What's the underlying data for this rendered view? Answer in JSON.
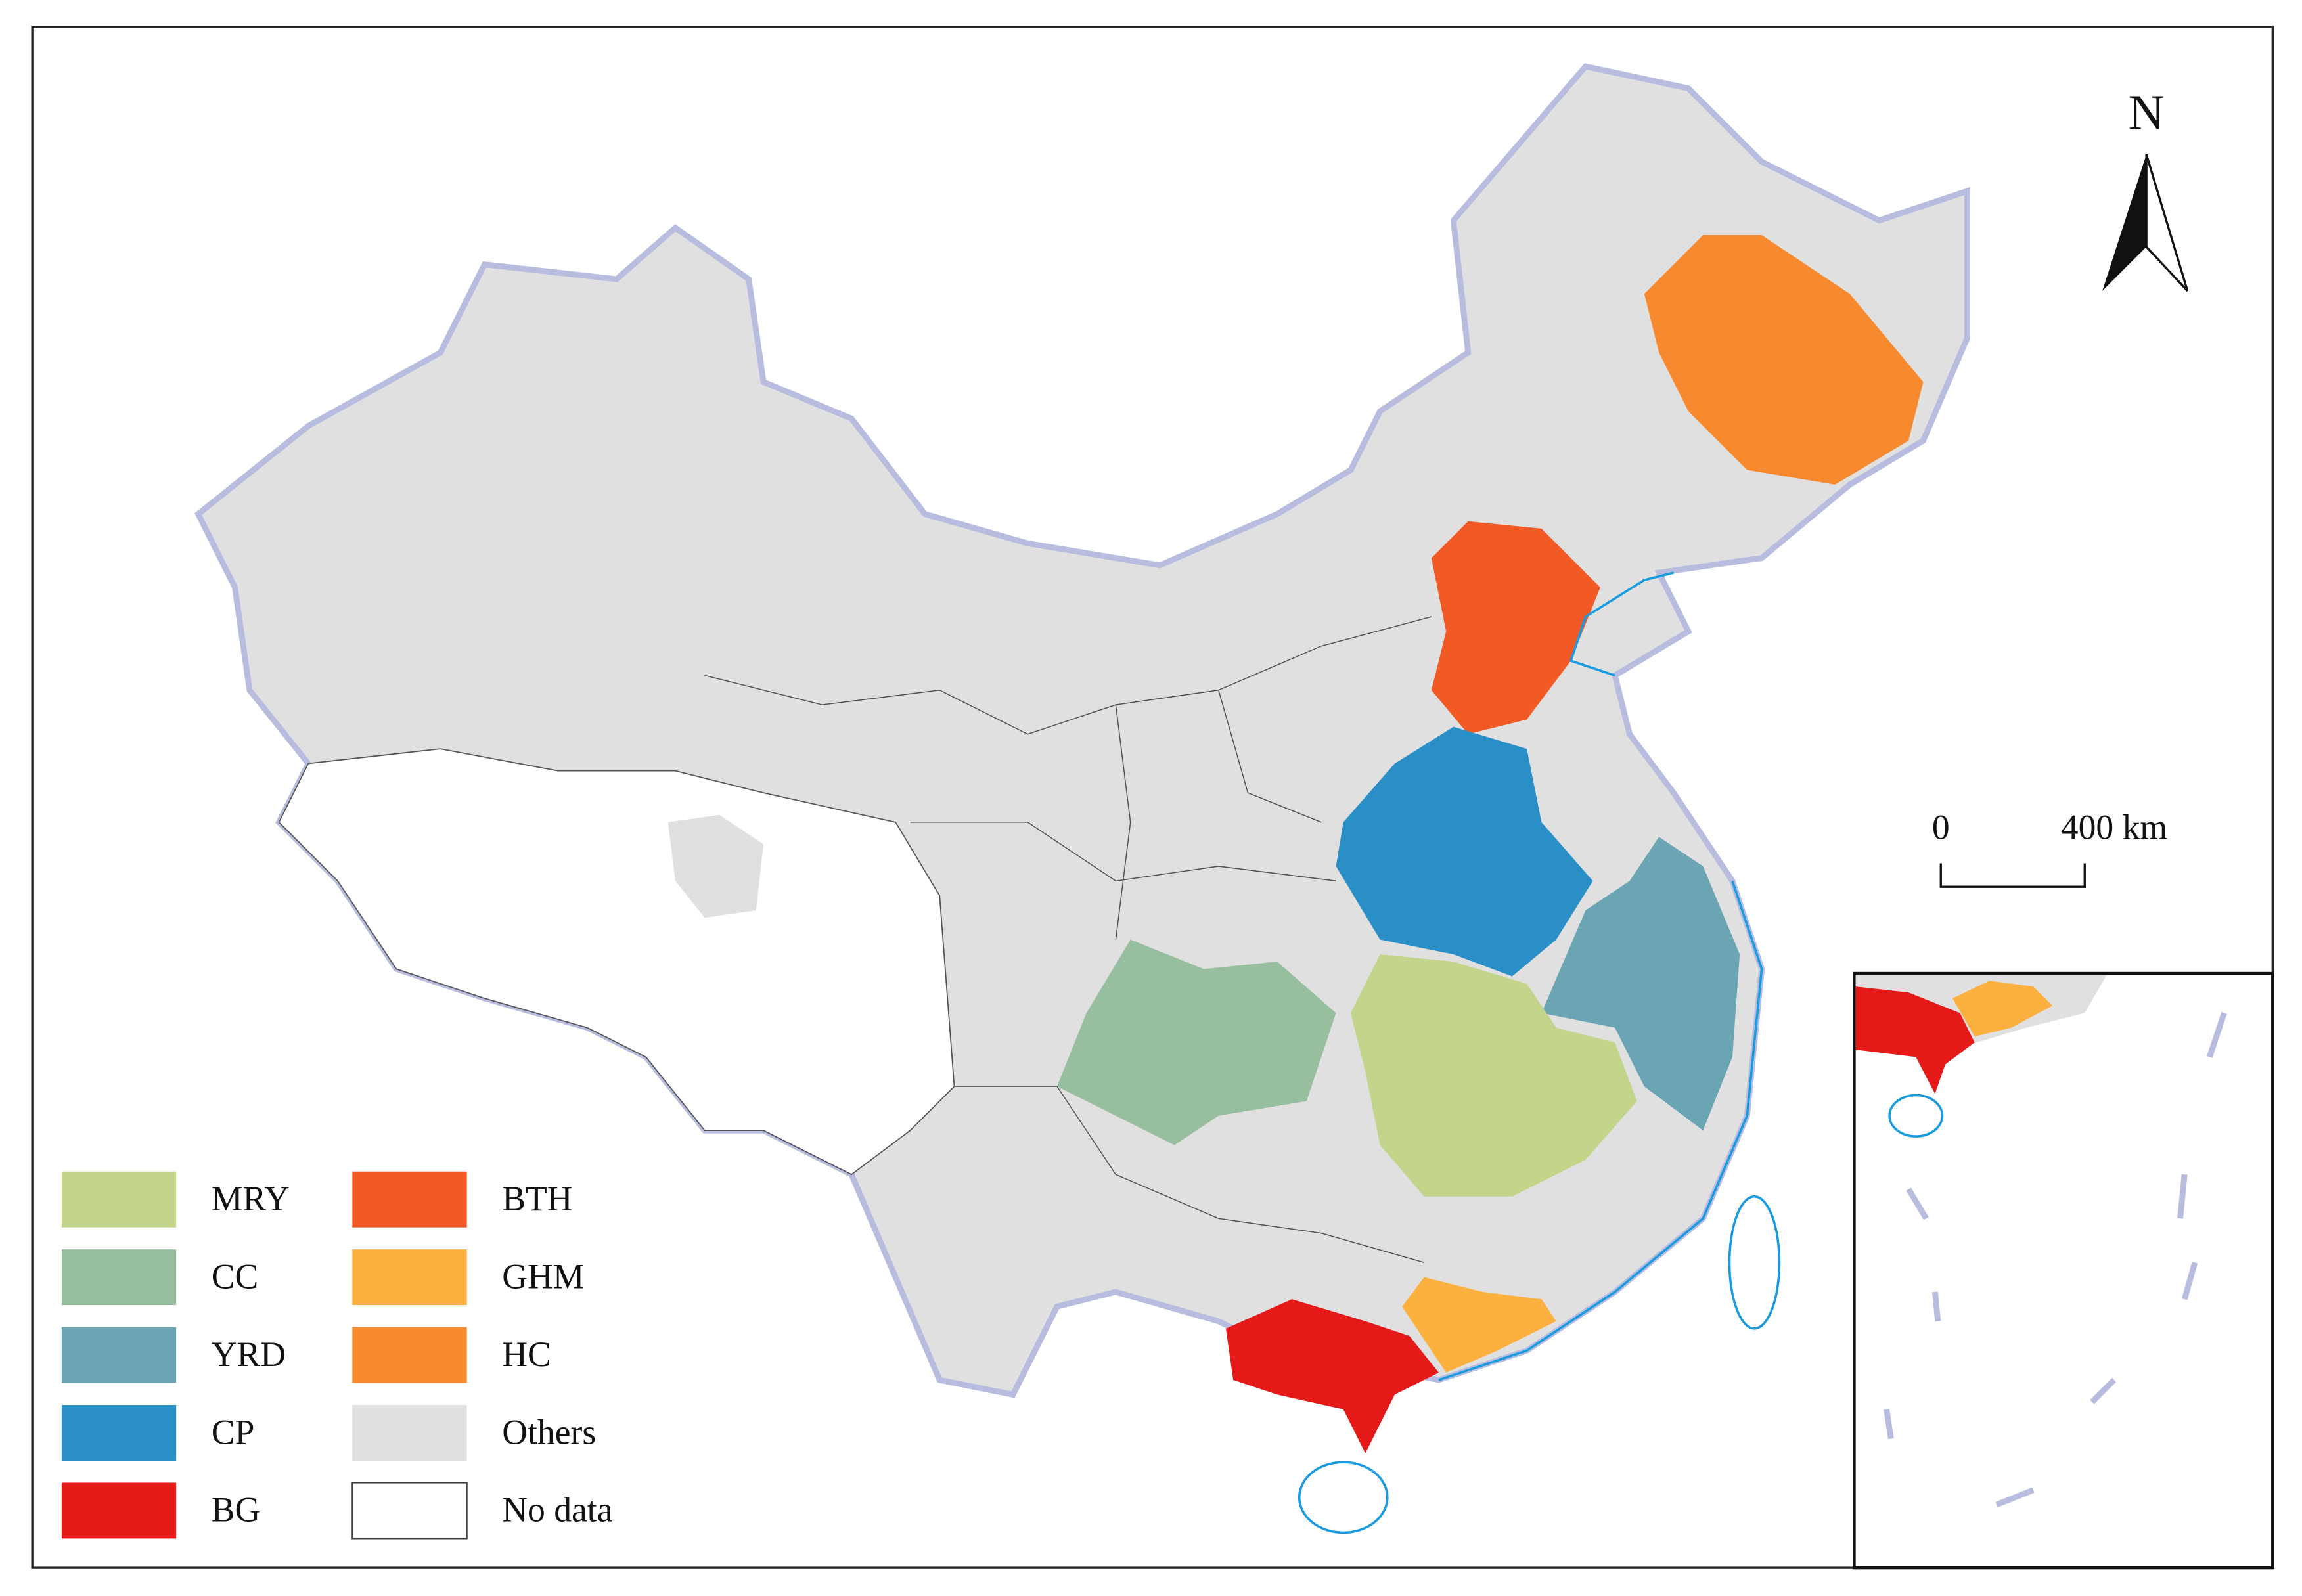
{
  "legend": {
    "items": [
      {
        "label": "MRY",
        "color": "#c3d58b"
      },
      {
        "label": "CC",
        "color": "#97bf9f"
      },
      {
        "label": "YRD",
        "color": "#6ba5b3"
      },
      {
        "label": "CP",
        "color": "#2b8fc7"
      },
      {
        "label": "BG",
        "color": "#e61919"
      },
      {
        "label": "BTH",
        "color": "#f15a24"
      },
      {
        "label": "GHM",
        "color": "#fbb040"
      },
      {
        "label": "HC",
        "color": "#f7892f"
      },
      {
        "label": "Others",
        "color": "#e0e0e0"
      },
      {
        "label": "No data",
        "color": "#ffffff"
      }
    ]
  },
  "north_arrow": {
    "label": "N"
  },
  "scale_bar": {
    "labels": [
      "0",
      "400 km"
    ]
  }
}
